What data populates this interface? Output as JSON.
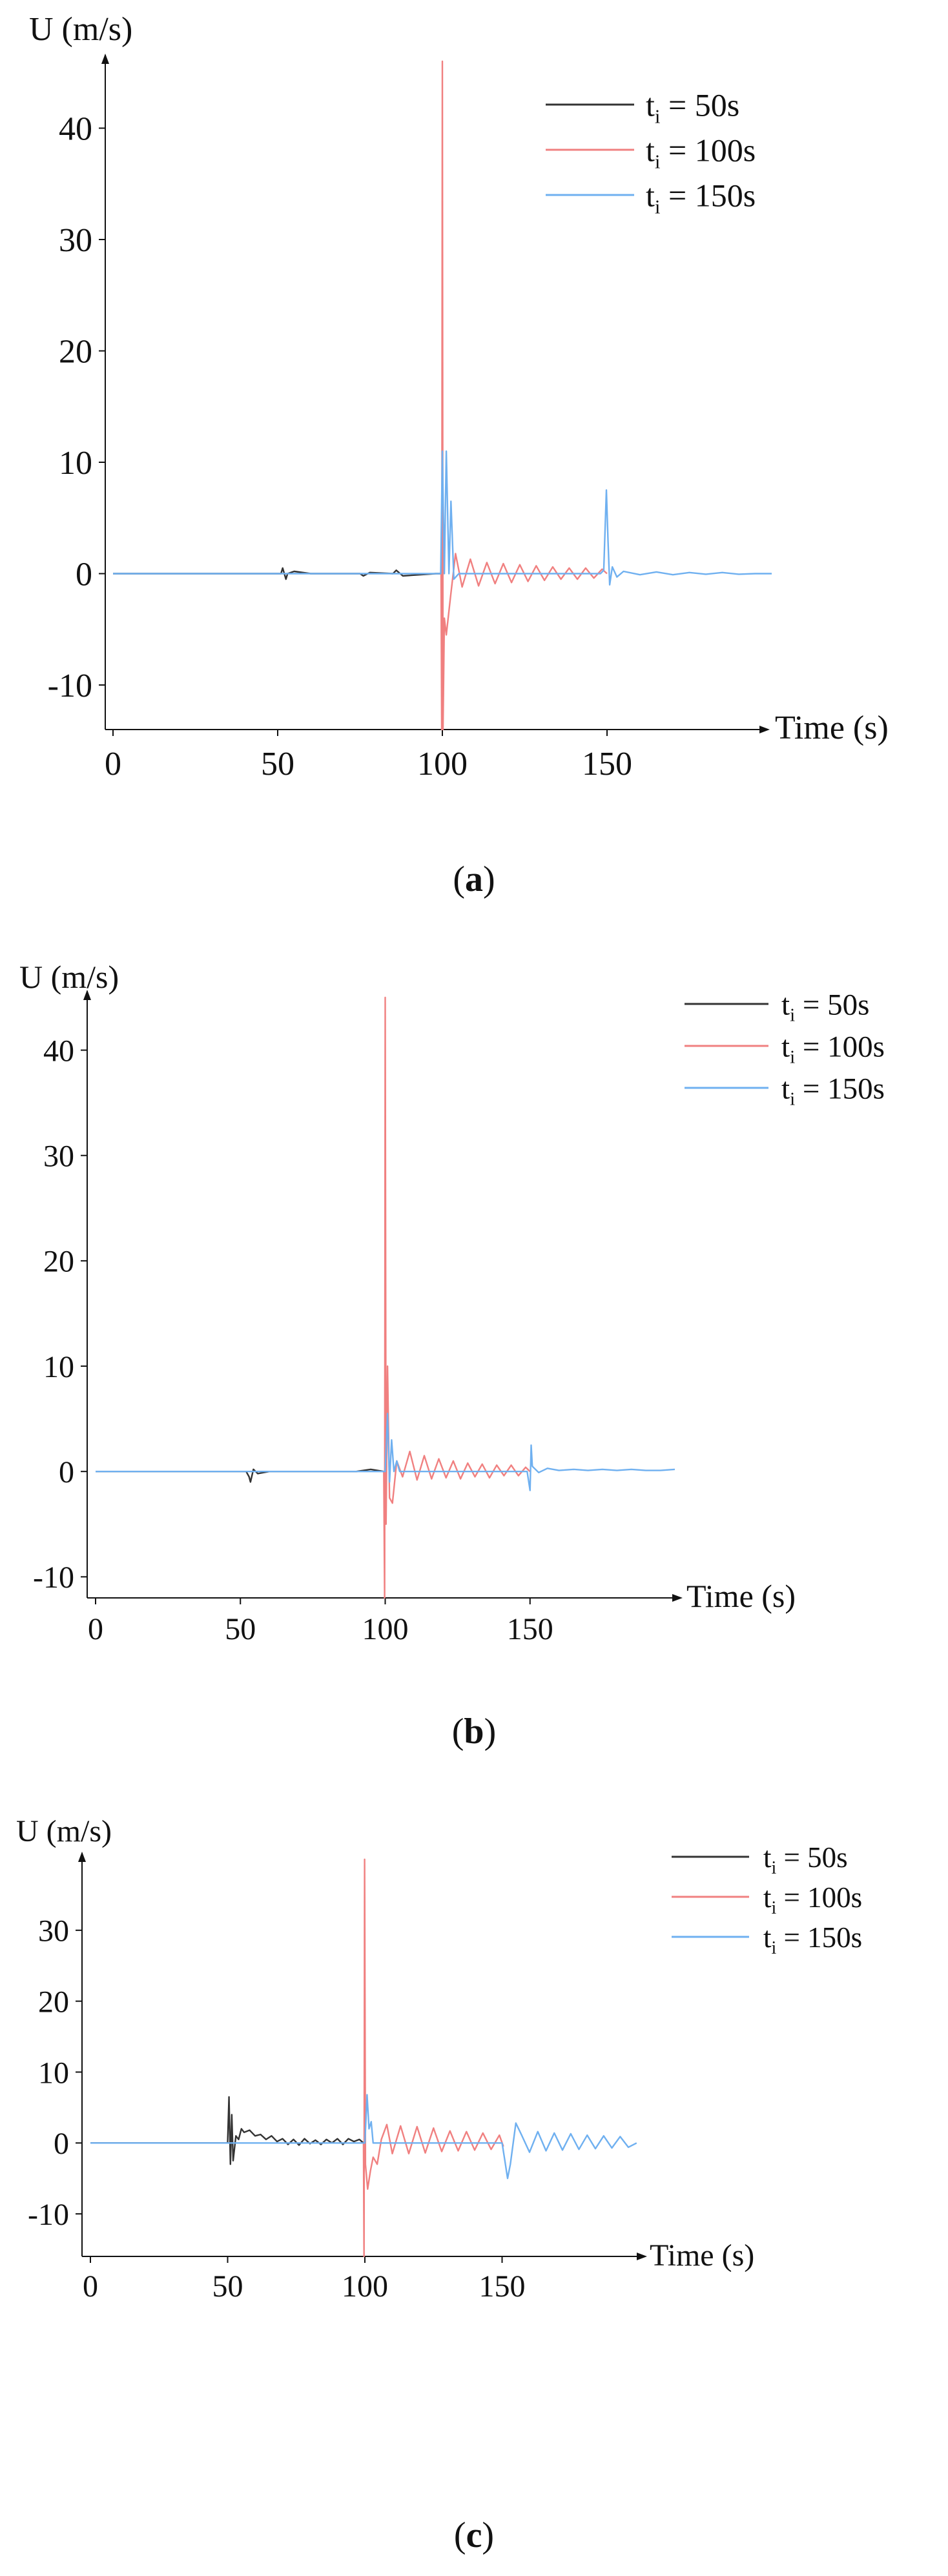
{
  "figure": {
    "panel_prefix": "(",
    "panel_suffix": ")"
  },
  "chart_data": [
    {
      "panel_letter": "a",
      "type": "line",
      "ylabel": "U (m/s)",
      "xlabel": "Time (s)",
      "xlim": [
        0,
        200
      ],
      "ylim": [
        -14,
        46
      ],
      "xticks": [
        0,
        50,
        100,
        150
      ],
      "yticks": [
        -10,
        0,
        10,
        20,
        30,
        40
      ],
      "legend_position": "top-right",
      "series": [
        {
          "name": "t_i = 50s",
          "legend_main": "t",
          "legend_sub": "i",
          "legend_rest": " = 50s",
          "color": "#333333",
          "x": [
            0,
            48,
            51,
            51.5,
            52.5,
            53,
            55,
            60,
            75,
            76,
            78,
            85,
            86,
            88,
            98,
            99.6
          ],
          "y": [
            0,
            0,
            0,
            0.5,
            -0.5,
            0,
            0.2,
            0,
            0,
            -0.2,
            0.1,
            0,
            0.3,
            -0.2,
            0,
            0
          ]
        },
        {
          "name": "t_i = 100s",
          "legend_main": "t",
          "legend_sub": "i",
          "legend_rest": " = 100s",
          "color": "#f08080",
          "x": [
            99.6,
            99.8,
            100,
            100.2,
            100.6,
            101.2,
            102.5,
            104,
            106,
            108.5,
            111,
            113.5,
            116,
            118.5,
            121,
            123.5,
            126,
            128.5,
            131,
            133.5,
            136,
            138.5,
            141,
            143.5,
            146,
            148.5,
            150
          ],
          "y": [
            0,
            -14,
            46,
            -14,
            -4,
            -5.5,
            -2,
            1.8,
            -1.2,
            1.3,
            -1.1,
            1.0,
            -0.9,
            0.9,
            -0.8,
            0.8,
            -0.7,
            0.7,
            -0.6,
            0.6,
            -0.5,
            0.5,
            -0.5,
            0.5,
            -0.4,
            0.4,
            0
          ]
        },
        {
          "name": "t_i = 150s",
          "legend_main": "t",
          "legend_sub": "i",
          "legend_rest": " = 150s",
          "color": "#6fb0f0",
          "x": [
            0,
            99.5,
            100,
            100.6,
            101.2,
            102,
            102.6,
            103.5,
            105,
            148,
            149,
            149.8,
            150.3,
            150.8,
            151.6,
            153,
            155,
            160,
            165,
            170,
            175,
            180,
            185,
            190,
            195,
            200
          ],
          "y": [
            0,
            0,
            11,
            0,
            11,
            0,
            6.5,
            -0.5,
            0,
            0,
            0.3,
            7.5,
            3,
            -1,
            0.6,
            -0.3,
            0.2,
            -0.1,
            0.15,
            -0.1,
            0.1,
            -0.05,
            0.1,
            -0.05,
            0,
            0
          ]
        }
      ]
    },
    {
      "panel_letter": "b",
      "type": "line",
      "ylabel": "U (m/s)",
      "xlabel": "Time (s)",
      "xlim": [
        0,
        200
      ],
      "ylim": [
        -12,
        45
      ],
      "xticks": [
        0,
        50,
        100,
        150
      ],
      "yticks": [
        -10,
        0,
        10,
        20,
        30,
        40
      ],
      "legend_position": "top-right",
      "series": [
        {
          "name": "t_i = 50s",
          "legend_main": "t",
          "legend_sub": "i",
          "legend_rest": " = 50s",
          "color": "#333333",
          "x": [
            0,
            52,
            53,
            53.5,
            54.5,
            56,
            60,
            90,
            95,
            99.5
          ],
          "y": [
            0,
            0,
            -0.5,
            -1,
            0.2,
            -0.2,
            0,
            0,
            0.2,
            0
          ]
        },
        {
          "name": "t_i = 100s",
          "legend_main": "t",
          "legend_sub": "i",
          "legend_rest": " = 100s",
          "color": "#f08080",
          "x": [
            99.5,
            99.8,
            100,
            100.3,
            100.8,
            101.5,
            102.5,
            104,
            106,
            108.5,
            111,
            113.5,
            116,
            118.5,
            121,
            123.5,
            126,
            128.5,
            131,
            133.5,
            136,
            138.5,
            141,
            143.5,
            146,
            148.5,
            150
          ],
          "y": [
            0,
            -12,
            45,
            -5,
            10,
            -2.5,
            -3,
            1,
            -0.5,
            1.9,
            -0.8,
            1.5,
            -0.7,
            1.2,
            -0.6,
            1.0,
            -0.7,
            0.8,
            -0.5,
            0.7,
            -0.6,
            0.6,
            -0.4,
            0.6,
            -0.4,
            0.4,
            0
          ]
        },
        {
          "name": "t_i = 150s",
          "legend_main": "t",
          "legend_sub": "i",
          "legend_rest": " = 150s",
          "color": "#6fb0f0",
          "x": [
            0,
            100,
            100.8,
            101.5,
            102.2,
            103,
            104,
            105,
            149,
            150,
            150.4,
            150.8,
            151.5,
            153,
            156,
            160,
            165,
            170,
            175,
            180,
            185,
            190,
            195,
            200
          ],
          "y": [
            0,
            0,
            5.5,
            -1,
            3,
            0,
            1,
            0,
            0,
            -1.8,
            2.5,
            0.5,
            0.3,
            -0.1,
            0.3,
            0.1,
            0.2,
            0.1,
            0.2,
            0.1,
            0.2,
            0.1,
            0.1,
            0.2
          ]
        }
      ]
    },
    {
      "panel_letter": "c",
      "type": "line",
      "ylabel": "U (m/s)",
      "xlabel": "Time (s)",
      "xlim": [
        0,
        200
      ],
      "ylim": [
        -16,
        40
      ],
      "xticks": [
        0,
        50,
        100,
        150
      ],
      "yticks": [
        -10,
        0,
        10,
        20,
        30
      ],
      "legend_position": "top-right",
      "series": [
        {
          "name": "t_i = 50s",
          "legend_main": "t",
          "legend_sub": "i",
          "legend_rest": " = 50s",
          "color": "#333333",
          "x": [
            0,
            50,
            50.5,
            51,
            51.5,
            52,
            53,
            54,
            55,
            56,
            58,
            60,
            62,
            64,
            66,
            68,
            70,
            72,
            74,
            76,
            78,
            80,
            82,
            84,
            86,
            88,
            90,
            92,
            94,
            96,
            98,
            99.5
          ],
          "y": [
            0,
            0,
            6.5,
            -3,
            4,
            -2.5,
            1,
            0.5,
            2,
            1.5,
            1.8,
            1,
            1.2,
            0.5,
            1,
            0.2,
            0.6,
            -0.2,
            0.5,
            -0.3,
            0.6,
            -0.1,
            0.4,
            -0.2,
            0.5,
            0,
            0.6,
            -0.2,
            0.6,
            0.2,
            0.5,
            0
          ]
        },
        {
          "name": "t_i = 100s",
          "legend_main": "t",
          "legend_sub": "i",
          "legend_rest": " = 100s",
          "color": "#f08080",
          "x": [
            99.5,
            99.7,
            99.9,
            100.2,
            101,
            102,
            103,
            104.5,
            106,
            108,
            110,
            113,
            116,
            119,
            122,
            125,
            128,
            131,
            134,
            137,
            140,
            143,
            146,
            149,
            150.5
          ],
          "y": [
            0,
            -16,
            40,
            -3,
            -6.5,
            -4,
            -2,
            -3,
            0.5,
            2.6,
            -1.5,
            2.4,
            -1.5,
            2.3,
            -1.4,
            2.1,
            -1.2,
            1.7,
            -1.1,
            1.6,
            -1.0,
            1.4,
            -0.9,
            1.1,
            -0.5
          ]
        },
        {
          "name": "t_i = 150s",
          "legend_main": "t",
          "legend_sub": "i",
          "legend_rest": " = 150s",
          "color": "#6fb0f0",
          "x": [
            0,
            50,
            100,
            100.8,
            101.5,
            102.3,
            103,
            150,
            151,
            152,
            153,
            155,
            157,
            160,
            163,
            166,
            169,
            172,
            175,
            178,
            181,
            184,
            187,
            190,
            193,
            196,
            199
          ],
          "y": [
            0,
            0,
            0,
            6.8,
            2,
            3,
            0,
            0,
            -2.5,
            -5,
            -3,
            2.8,
            1.2,
            -1.3,
            1.6,
            -1.1,
            1.4,
            -1.0,
            1.3,
            -0.9,
            1.1,
            -0.8,
            1.0,
            -0.7,
            0.9,
            -0.6,
            0
          ]
        }
      ]
    }
  ]
}
